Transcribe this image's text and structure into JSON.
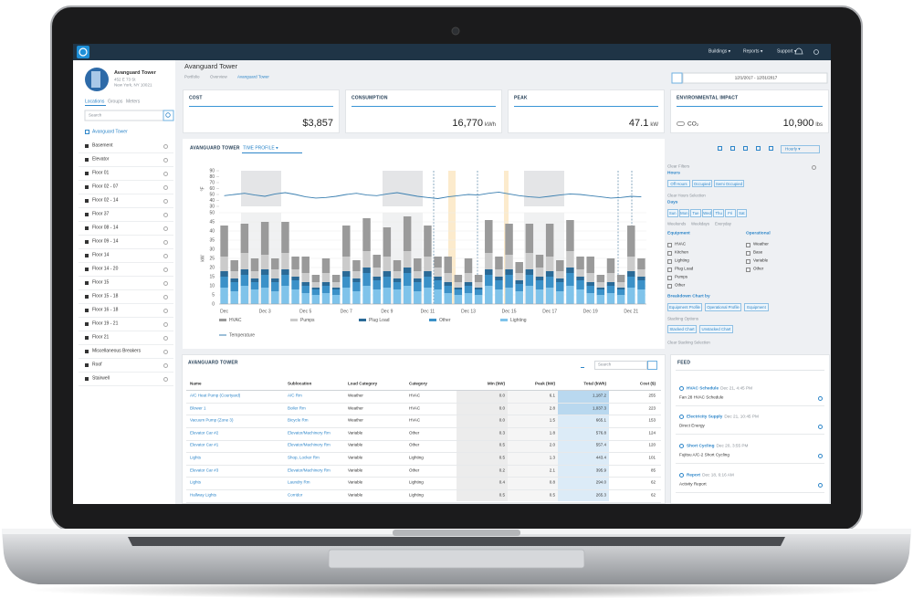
{
  "topbar": {
    "nav": [
      "Buildings",
      "Reports",
      "Support"
    ]
  },
  "sidebar": {
    "name": "Avanguard Tower",
    "address": [
      "452 E 73 St",
      "New York, NY 10021"
    ],
    "tabs": [
      "Locations",
      "Groups",
      "Meters"
    ],
    "search": "Search",
    "root": "Avanguard Tower",
    "items": [
      "Basement",
      "Elevator",
      "Floor 01",
      "Floor 02 - 07",
      "Floor 02 - 14",
      "Floor 37",
      "Floor 08 - 14",
      "Floor 09 - 14",
      "Floor 14",
      "Floor 14 - 20",
      "Floor 15",
      "Floor 15 - 18",
      "Floor 16 - 18",
      "Floor 19 - 21",
      "Floor 21",
      "Miscellaneous Breakers",
      "Roof",
      "Stairwell"
    ]
  },
  "header": {
    "title": "Avanguard Tower",
    "breadcrumb": [
      "Portfolio",
      "Overview",
      "Avanguard Tower"
    ],
    "dates": "12/1/2017 - 12/31/2017"
  },
  "kpis": [
    {
      "label": "COST",
      "value": "$3,857"
    },
    {
      "label": "CONSUMPTION",
      "value": "16,770",
      "unit": "kWh"
    },
    {
      "label": "PEAK",
      "value": "47.1",
      "unit": "kW"
    },
    {
      "label": "ENVIRONMENTAL IMPACT",
      "gas": "CO₂",
      "value": "10,900",
      "unit": "lbs"
    }
  ],
  "panel": {
    "title": "AVANGUARD TOWER",
    "view": "TIME PROFILE",
    "interval": "Hourly"
  },
  "chart_data": {
    "type": "bar",
    "stacked": true,
    "grid": true,
    "ylabel": "kW",
    "ylim": [
      0,
      50
    ],
    "yticks": [
      0,
      5,
      10,
      15,
      20,
      25,
      30,
      35,
      40,
      45,
      50
    ],
    "categories": [
      "Dec",
      null,
      null,
      null,
      "Dec 3",
      null,
      null,
      null,
      "Dec 5",
      null,
      null,
      null,
      "Dec 7",
      null,
      null,
      null,
      "Dec 9",
      null,
      null,
      null,
      "Dec 11",
      null,
      null,
      null,
      "Dec 13",
      null,
      null,
      null,
      "Dec 15",
      null,
      null,
      null,
      "Dec 17",
      null,
      null,
      null,
      "Dec 19",
      null,
      null,
      null,
      "Dec 21",
      null
    ],
    "series": [
      {
        "name": "Lighting",
        "color": "#7fc3ea",
        "values": [
          9,
          7,
          10,
          8,
          9,
          7,
          10,
          8,
          6,
          5,
          6,
          5,
          9,
          7,
          10,
          8,
          9,
          8,
          10,
          7,
          9,
          8,
          6,
          5,
          6,
          5,
          10,
          8,
          9,
          7,
          10,
          8,
          9,
          7,
          10,
          8,
          6,
          5,
          6,
          5,
          9,
          8
        ]
      },
      {
        "name": "Other",
        "color": "#3b91c8",
        "values": [
          6,
          5,
          6,
          4,
          7,
          5,
          6,
          5,
          4,
          3,
          4,
          3,
          6,
          5,
          7,
          5,
          6,
          4,
          7,
          5,
          6,
          5,
          4,
          3,
          4,
          3,
          6,
          5,
          7,
          4,
          6,
          5,
          6,
          5,
          7,
          5,
          4,
          3,
          4,
          3,
          6,
          5
        ]
      },
      {
        "name": "Plug Load",
        "color": "#2a6a97",
        "values": [
          3,
          2,
          3,
          2,
          3,
          2,
          3,
          2,
          2,
          1,
          2,
          1,
          3,
          2,
          3,
          2,
          3,
          2,
          3,
          2,
          3,
          2,
          2,
          1,
          2,
          1,
          3,
          2,
          3,
          2,
          3,
          2,
          3,
          2,
          3,
          2,
          2,
          1,
          2,
          1,
          3,
          2
        ]
      },
      {
        "name": "Pumps",
        "color": "#cbcbcb",
        "values": [
          8,
          4,
          9,
          4,
          8,
          5,
          9,
          4,
          5,
          3,
          5,
          3,
          8,
          4,
          9,
          5,
          8,
          4,
          9,
          4,
          8,
          5,
          5,
          3,
          5,
          3,
          9,
          4,
          8,
          4,
          9,
          5,
          8,
          4,
          9,
          4,
          5,
          3,
          5,
          3,
          8,
          4
        ]
      },
      {
        "name": "HVAC",
        "color": "#9a9a9a",
        "values": [
          17,
          6,
          16,
          7,
          18,
          6,
          17,
          7,
          9,
          4,
          8,
          4,
          17,
          6,
          18,
          7,
          16,
          6,
          19,
          7,
          17,
          6,
          9,
          4,
          8,
          4,
          18,
          7,
          17,
          6,
          16,
          7,
          18,
          6,
          17,
          7,
          9,
          4,
          8,
          4,
          17,
          6
        ]
      }
    ],
    "temperature": {
      "type": "line",
      "name": "Temperature",
      "color": "#3a7fb0",
      "ylabel": "°F",
      "ylim": [
        30,
        90
      ],
      "yticks": [
        30,
        40,
        50,
        60,
        70,
        80,
        90
      ],
      "values": [
        48,
        50,
        52,
        49,
        47,
        51,
        53,
        50,
        46,
        44,
        45,
        47,
        50,
        52,
        49,
        48,
        51,
        53,
        50,
        47,
        45,
        43,
        46,
        48,
        50,
        49,
        52,
        54,
        51,
        48,
        46,
        45,
        47,
        49,
        51,
        50,
        48,
        46,
        44,
        45,
        47,
        46
      ]
    },
    "legend_order": [
      4,
      3,
      2,
      1,
      0
    ]
  },
  "filters": {
    "clear": "Clear Filters",
    "hours": "Hours",
    "hour_buttons": [
      "Off Hours",
      "Occupied",
      "Semi Occupied"
    ],
    "clear_hours": "Clear Hours Selection",
    "days": "Days",
    "day_buttons": [
      "Sun",
      "Mon",
      "Tue",
      "Wed",
      "Thu",
      "Fri",
      "Sat"
    ],
    "day_groups": [
      "Weekends",
      "Weekdays",
      "Everyday"
    ],
    "equipment": "Equipment",
    "equipment_items": [
      "HVAC",
      "Kitchen",
      "Lighting",
      "Plug Load",
      "Pumps",
      "Other"
    ],
    "operational": "Operational",
    "operational_items": [
      "Weather",
      "Base",
      "Variable",
      "Other"
    ],
    "breakdown": "Breakdown Chart by",
    "breakdown_buttons": [
      "Equipment Profile",
      "Operational Profile",
      "Equipment"
    ],
    "stacking": "Stacking Options",
    "stacking_buttons": [
      "Stacked Chart",
      "Unstacked Chart"
    ],
    "clear_stacking": "Clear Stacking Selection"
  },
  "table": {
    "title": "AVANGUARD TOWER",
    "search": "Search",
    "columns": [
      "Name",
      "Sublocation",
      "Load Category",
      "Category",
      "Min (kW)",
      "Peak (kW)",
      "Total (kWh)",
      "Cost ($)"
    ],
    "rows": [
      [
        "A/C Heat Pump (Courtyard)",
        "A/C Rm",
        "Weather",
        "HVAC",
        "0.0",
        "6.1",
        "1,187.2",
        "255"
      ],
      [
        "Blower 1",
        "Boiler Rm",
        "Weather",
        "HVAC",
        "0.0",
        "2.8",
        "1,037.3",
        "223"
      ],
      [
        "Vacuum Pump (Zone 3)",
        "Bicycle Rm",
        "Weather",
        "HVAC",
        "0.0",
        "1.5",
        "665.1",
        "153"
      ],
      [
        "Elevator Car #2",
        "Elevator/Machinery Rm",
        "Variable",
        "Other",
        "0.3",
        "1.8",
        "576.8",
        "124"
      ],
      [
        "Elevator Car #1",
        "Elevator/Machinery Rm",
        "Variable",
        "Other",
        "0.5",
        "2.0",
        "557.4",
        "120"
      ],
      [
        "Lights",
        "Shop, Locker Rm",
        "Variable",
        "Lighting",
        "0.5",
        "1.3",
        "443.4",
        "101"
      ],
      [
        "Elevator Car #3",
        "Elevator/Machinery Rm",
        "Variable",
        "Other",
        "0.2",
        "2.1",
        "395.9",
        "85"
      ],
      [
        "Lights",
        "Laundry Rm",
        "Variable",
        "Lighting",
        "0.4",
        "0.8",
        "294.0",
        "62"
      ],
      [
        "Hallway Lights",
        "Corridor",
        "Variable",
        "Lighting",
        "0.5",
        "0.5",
        "265.3",
        "62"
      ]
    ]
  },
  "feed": {
    "title": "FEED",
    "items": [
      {
        "title": "HVAC Schedule",
        "time": "Dec 21, 4:45 PM",
        "text": "Fan 28 HVAC Schedule"
      },
      {
        "title": "Electricity Supply",
        "time": "Dec 21, 10:45 PM",
        "text": "Direct Energy"
      },
      {
        "title": "Short Cycling",
        "time": "Dec 20, 3:55 PM",
        "text": "Fujitsu A/C-2 Short Cycling"
      },
      {
        "title": "Report",
        "time": "Dec 18, 6:16 AM",
        "text": "Activity Report"
      }
    ]
  }
}
